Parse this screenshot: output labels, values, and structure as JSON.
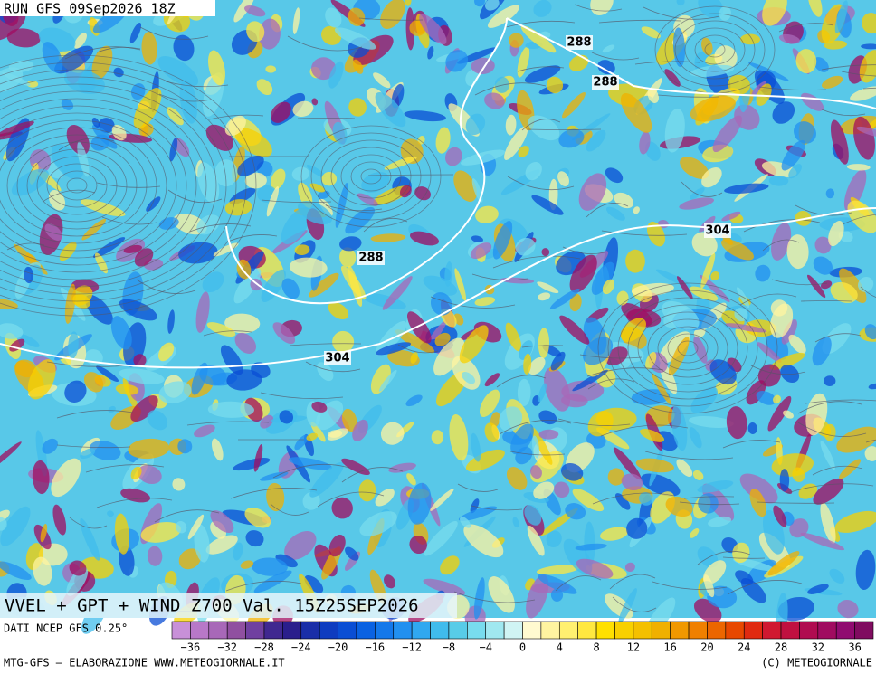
{
  "header": {
    "run": "RUN GFS 09Sep2026 18Z",
    "product": "VVEL + GPT + WIND Z700 Val. 15Z25SEP2026"
  },
  "map": {
    "contour_labels": [
      "288",
      "288",
      "288",
      "304",
      "304"
    ]
  },
  "legend": {
    "source": "DATI NCEP GFS 0.25°",
    "colors": [
      "#c890d8",
      "#b878c8",
      "#a868b8",
      "#9050a0",
      "#7040a0",
      "#402890",
      "#2a1e8c",
      "#1a2ea8",
      "#0e3cc0",
      "#0a4ed4",
      "#0a62e2",
      "#1478ea",
      "#2290f0",
      "#30a8f0",
      "#40bcec",
      "#58cce8",
      "#78dcee",
      "#a0e8f0",
      "#d0f4f4",
      "#fffad0",
      "#fff4a0",
      "#fff070",
      "#ffe840",
      "#ffe000",
      "#f8d000",
      "#f4c000",
      "#f0b000",
      "#f09800",
      "#f08000",
      "#ec6600",
      "#e84800",
      "#e02a10",
      "#d01830",
      "#c01040",
      "#b00c50",
      "#a00c60",
      "#900c70",
      "#800c60"
    ],
    "ticks": [
      "−36",
      "−32",
      "−28",
      "−24",
      "−20",
      "−16",
      "−12",
      "−8",
      "−4",
      "0",
      "4",
      "8",
      "12",
      "16",
      "20",
      "24",
      "28",
      "32",
      "36"
    ]
  },
  "footer": {
    "left": "MTG-GFS – ELABORAZIONE WWW.METEOGIORNALE.IT",
    "right": "(C) METEOGIORNALE"
  }
}
